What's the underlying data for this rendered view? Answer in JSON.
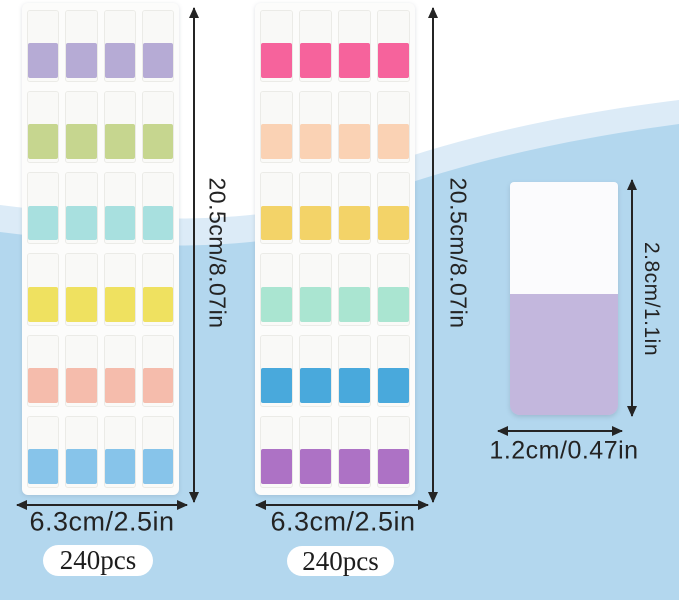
{
  "product": {
    "sheets": [
      {
        "name": "pastel-sheet",
        "rows": 6,
        "columns": 4,
        "row_colors": [
          "#b6abd5",
          "#c6d68f",
          "#a8e0df",
          "#efe160",
          "#f5bcac",
          "#87c4ea"
        ],
        "height_label": "20.5cm/8.07in",
        "width_label": "6.3cm/2.5in",
        "count_label": "240pcs"
      },
      {
        "name": "bright-sheet",
        "rows": 6,
        "columns": 4,
        "row_colors": [
          "#f6639c",
          "#fad2b4",
          "#f3d368",
          "#aae5d1",
          "#49a9dc",
          "#ad72c5"
        ],
        "height_label": "20.5cm/8.07in",
        "width_label": "6.3cm/2.5in",
        "count_label": "240pcs"
      }
    ],
    "single_tab": {
      "color": "#c3b7dd",
      "height_label": "2.8cm/1.1in",
      "width_label": "1.2cm/0.47in"
    }
  },
  "colors": {
    "wave_light": "#dcebf7",
    "wave_main": "#b3d7ee",
    "arrow": "#242424"
  }
}
